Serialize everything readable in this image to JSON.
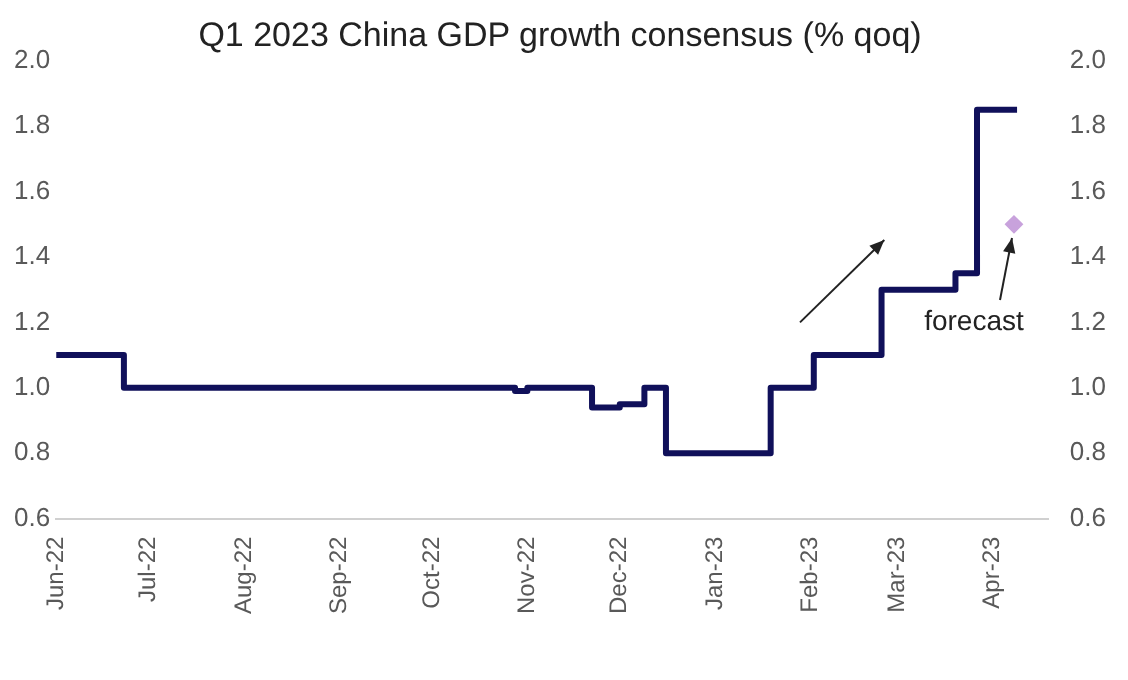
{
  "chart_data": {
    "type": "step",
    "title": "Q1 2023 China GDP growth consensus (% qoq)",
    "series": [
      {
        "type": "step",
        "color": "#10105a",
        "x": [
          "2022-06-01",
          "2022-06-23",
          "2022-10-28",
          "2022-11-01",
          "2022-11-22",
          "2022-12-01",
          "2022-12-09",
          "2022-12-16",
          "2023-01-19",
          "2023-02-02",
          "2023-02-24",
          "2023-03-20",
          "2023-03-27",
          "2023-04-09"
        ],
        "values": [
          1.1,
          1.0,
          0.99,
          1.0,
          0.94,
          0.95,
          1.0,
          0.8,
          1.0,
          1.1,
          1.3,
          1.35,
          1.85,
          1.85
        ]
      },
      {
        "type": "scatter",
        "color": "#c8a2dc",
        "marker": "diamond",
        "x": [
          "2023-04-08"
        ],
        "values": [
          1.5
        ]
      }
    ],
    "xlim": [
      "2022-06-01",
      "2023-04-19"
    ],
    "xticks": [
      {
        "value": "2022-06-01",
        "label": "Jun-22"
      },
      {
        "value": "2022-07-01",
        "label": "Jul-22"
      },
      {
        "value": "2022-08-01",
        "label": "Aug-22"
      },
      {
        "value": "2022-09-01",
        "label": "Sep-22"
      },
      {
        "value": "2022-10-01",
        "label": "Oct-22"
      },
      {
        "value": "2022-11-01",
        "label": "Nov-22"
      },
      {
        "value": "2022-12-01",
        "label": "Dec-22"
      },
      {
        "value": "2023-01-01",
        "label": "Jan-23"
      },
      {
        "value": "2023-02-01",
        "label": "Feb-23"
      },
      {
        "value": "2023-03-01",
        "label": "Mar-23"
      },
      {
        "value": "2023-04-01",
        "label": "Apr-23"
      }
    ],
    "ylim": [
      0.6,
      2.0
    ],
    "yticks": [
      0.6,
      0.8,
      {
        "value": 1.0,
        "label": "1.0"
      },
      1.2,
      1.4,
      1.6,
      1.8,
      {
        "value": 2.0,
        "label": "2.0"
      }
    ],
    "y2lim": [
      0.6,
      2.0
    ],
    "y2ticks": [
      0.6,
      0.8,
      {
        "value": 1.0,
        "label": "1.0"
      },
      1.2,
      1.4,
      1.6,
      1.8,
      {
        "value": 2.0,
        "label": "2.0"
      }
    ],
    "annotations": [
      {
        "text": "forecast",
        "x": "2023-04-08",
        "y": 1.5
      }
    ],
    "grid": false,
    "legend": false
  }
}
